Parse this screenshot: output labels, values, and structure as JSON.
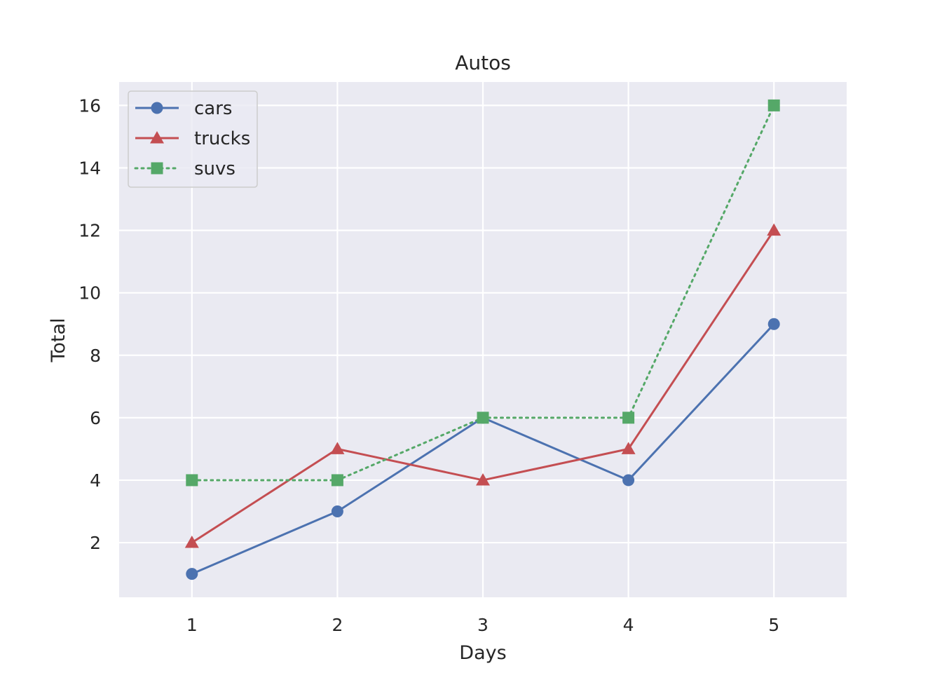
{
  "chart_data": {
    "type": "line",
    "title": "Autos",
    "xlabel": "Days",
    "ylabel": "Total",
    "x": [
      1,
      2,
      3,
      4,
      5
    ],
    "xlim": [
      0.5,
      5.5
    ],
    "ylim": [
      0.25,
      16.75
    ],
    "xticks": [
      1,
      2,
      3,
      4,
      5
    ],
    "yticks": [
      2,
      4,
      6,
      8,
      10,
      12,
      14,
      16
    ],
    "grid": true,
    "legend_position": "top-left",
    "series": [
      {
        "name": "cars",
        "values": [
          1,
          3,
          6,
          4,
          9
        ],
        "color": "#4c72b0",
        "marker": "circle",
        "line_style": "solid"
      },
      {
        "name": "trucks",
        "values": [
          2,
          5,
          4,
          5,
          12
        ],
        "color": "#c44e52",
        "marker": "triangle",
        "line_style": "solid"
      },
      {
        "name": "suvs",
        "values": [
          4,
          4,
          6,
          6,
          16
        ],
        "color": "#55a868",
        "marker": "square",
        "line_style": "dotted"
      }
    ]
  }
}
